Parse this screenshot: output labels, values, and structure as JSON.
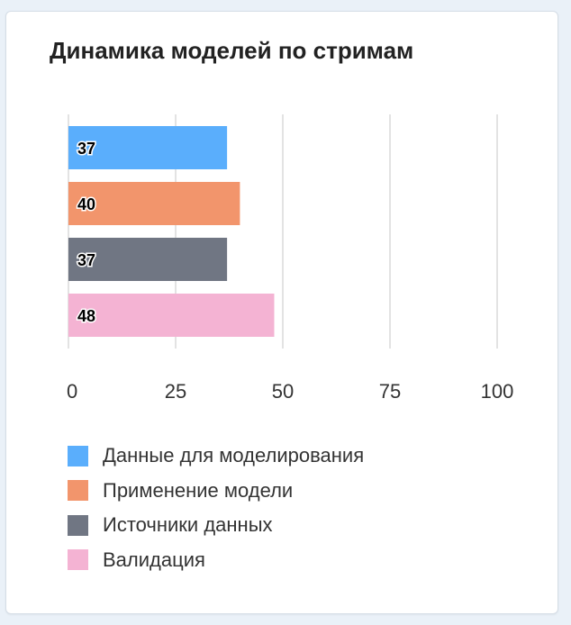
{
  "card": {
    "title": "Динамика моделей по стримам"
  },
  "chart_data": {
    "type": "bar",
    "orientation": "horizontal",
    "categories": [
      "Данные для моделирования",
      "Применение модели",
      "Источники данных",
      "Валидация"
    ],
    "values": [
      37,
      40,
      37,
      48
    ],
    "colors": [
      "#5aaefc",
      "#f2956c",
      "#707683",
      "#f4b3d3"
    ],
    "xlim": [
      0,
      100
    ],
    "xticks": [
      "0",
      "25",
      "50",
      "75",
      "100"
    ],
    "grid": true,
    "legend_position": "bottom",
    "title": "Динамика моделей по стримам",
    "xlabel": "",
    "ylabel": ""
  }
}
